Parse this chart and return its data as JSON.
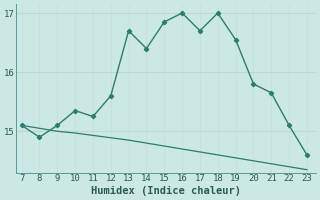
{
  "x": [
    7,
    8,
    9,
    10,
    11,
    12,
    13,
    14,
    15,
    16,
    17,
    18,
    19,
    20,
    21,
    22,
    23
  ],
  "y_main": [
    15.1,
    14.9,
    15.1,
    15.35,
    15.25,
    15.6,
    16.7,
    16.4,
    16.85,
    17.0,
    16.7,
    17.0,
    16.55,
    15.8,
    15.65,
    15.1,
    14.6
  ],
  "y_trend": [
    15.1,
    15.05,
    15.0,
    14.97,
    14.93,
    14.89,
    14.85,
    14.8,
    14.75,
    14.7,
    14.65,
    14.6,
    14.55,
    14.5,
    14.45,
    14.4,
    14.35
  ],
  "line_color": "#2d7d6d",
  "bg_color": "#cce8e4",
  "grid_color_h": "#c0d8d4",
  "grid_color_v": "#c8deda",
  "xlabel": "Humidex (Indice chaleur)",
  "yticks": [
    15,
    16,
    17
  ],
  "xticks": [
    7,
    8,
    9,
    10,
    11,
    12,
    13,
    14,
    15,
    16,
    17,
    18,
    19,
    20,
    21,
    22,
    23
  ],
  "ylim": [
    14.3,
    17.15
  ],
  "xlim": [
    6.7,
    23.5
  ],
  "xlabel_fontsize": 7.5,
  "tick_fontsize": 6.5
}
